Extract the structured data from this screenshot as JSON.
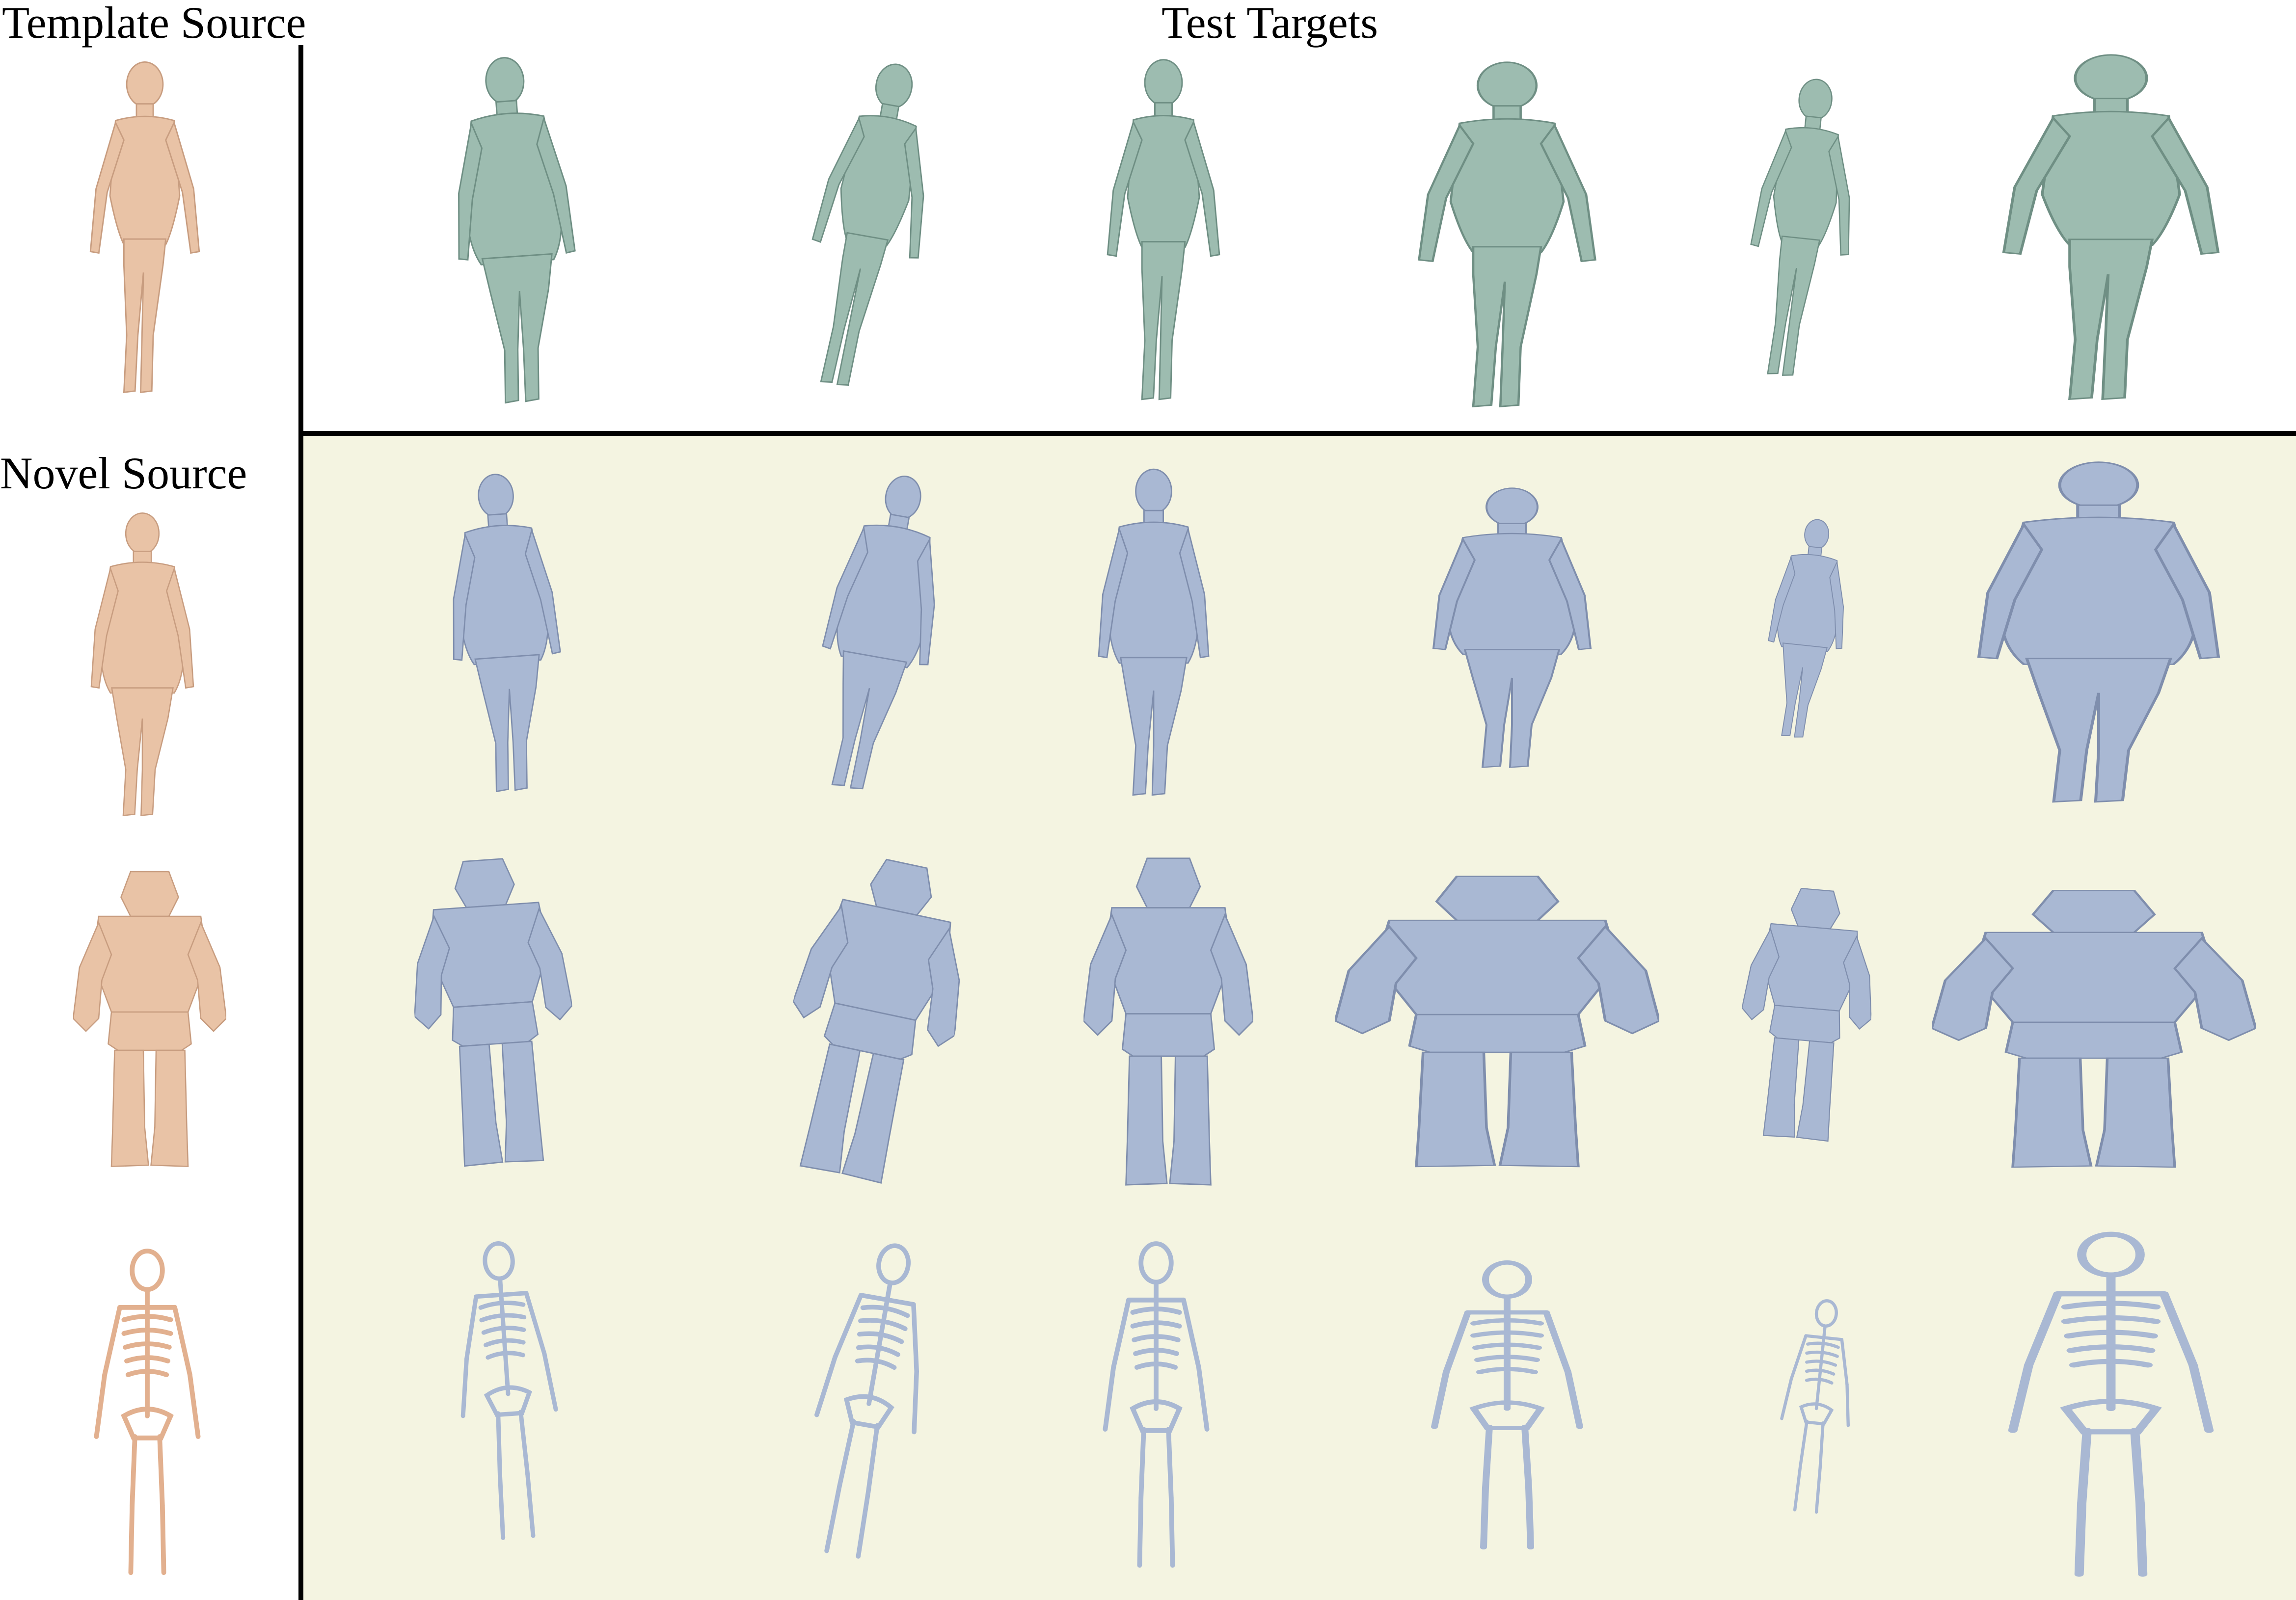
{
  "labels": {
    "template_source": "Template Source",
    "test_targets": "Test Targets",
    "novel_source": "Novel Source"
  },
  "colors": {
    "template_mesh": "#e9c3a6",
    "target_mesh": "#9dbcb0",
    "result_mesh": "#a9b8d3",
    "result_panel_bg": "#f4f4e1",
    "divider": "#000000"
  },
  "poses": [
    "running-jump",
    "jogging",
    "walking",
    "crouch",
    "bending",
    "arms-out-stride"
  ],
  "sources": [
    "template-human",
    "novel-heavy-human",
    "novel-robot",
    "novel-skeleton"
  ]
}
